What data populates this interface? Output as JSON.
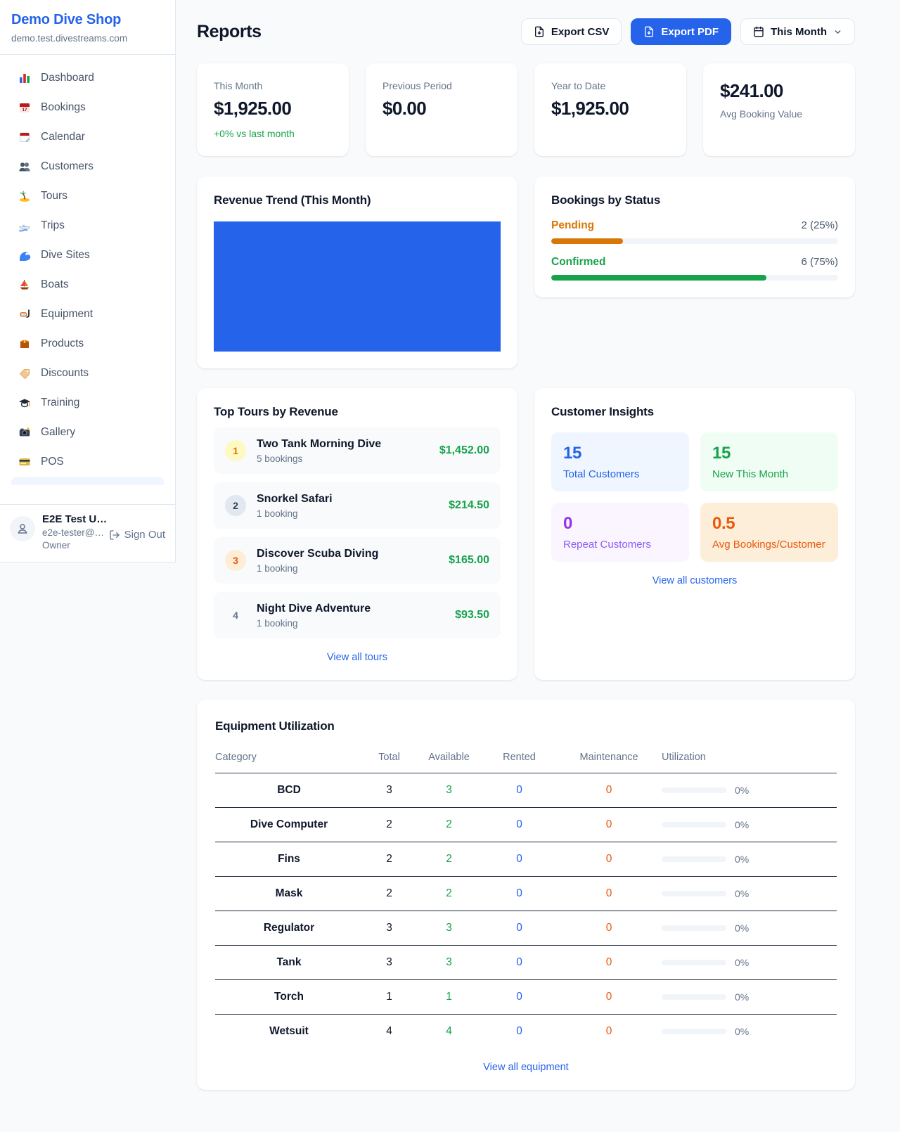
{
  "brand": {
    "name": "Demo Dive Shop",
    "domain": "demo.test.divestreams.com"
  },
  "sidebar": {
    "items": [
      {
        "label": "Dashboard",
        "icon": "bar-chart-icon"
      },
      {
        "label": "Bookings",
        "icon": "calendar-date-icon"
      },
      {
        "label": "Calendar",
        "icon": "tear-calendar-icon"
      },
      {
        "label": "Customers",
        "icon": "people-icon"
      },
      {
        "label": "Tours",
        "icon": "island-icon"
      },
      {
        "label": "Trips",
        "icon": "speedboat-icon"
      },
      {
        "label": "Dive Sites",
        "icon": "wave-icon"
      },
      {
        "label": "Boats",
        "icon": "sailboat-icon"
      },
      {
        "label": "Equipment",
        "icon": "dive-mask-icon"
      },
      {
        "label": "Products",
        "icon": "package-icon"
      },
      {
        "label": "Discounts",
        "icon": "tag-icon"
      },
      {
        "label": "Training",
        "icon": "grad-cap-icon"
      },
      {
        "label": "Gallery",
        "icon": "camera-icon"
      },
      {
        "label": "POS",
        "icon": "credit-card-icon"
      }
    ]
  },
  "user": {
    "name": "E2E Test U…",
    "email": "e2e-tester@…",
    "role": "Owner",
    "sign_out_label": "Sign Out"
  },
  "header": {
    "title": "Reports",
    "export_csv_label": "Export CSV",
    "export_pdf_label": "Export PDF",
    "period_label": "This Month"
  },
  "kpis": [
    {
      "label": "This Month",
      "value": "$1,925.00",
      "delta": "+0% vs last month"
    },
    {
      "label": "Previous Period",
      "value": "$0.00"
    },
    {
      "label": "Year to Date",
      "value": "$1,925.00"
    },
    {
      "label": "Avg Booking Value",
      "value": "$241.00"
    }
  ],
  "revenue_trend": {
    "title": "Revenue Trend (This Month)",
    "bar_color": "#2563eb"
  },
  "bookings_by_status": {
    "title": "Bookings by Status",
    "rows": [
      {
        "label": "Pending",
        "value": "2 (25%)",
        "percent": 25,
        "color": "#d97706"
      },
      {
        "label": "Confirmed",
        "value": "6 (75%)",
        "percent": 75,
        "color": "#16a34a"
      }
    ]
  },
  "top_tours": {
    "title": "Top Tours by Revenue",
    "rows": [
      {
        "rank": "1",
        "name": "Two Tank Morning Dive",
        "bookings": "5 bookings",
        "revenue": "$1,452.00"
      },
      {
        "rank": "2",
        "name": "Snorkel Safari",
        "bookings": "1 booking",
        "revenue": "$214.50"
      },
      {
        "rank": "3",
        "name": "Discover Scuba Diving",
        "bookings": "1 booking",
        "revenue": "$165.00"
      },
      {
        "rank": "4",
        "name": "Night Dive Adventure",
        "bookings": "1 booking",
        "revenue": "$93.50"
      }
    ],
    "view_all_label": "View all tours"
  },
  "customer_insights": {
    "title": "Customer Insights",
    "tiles": [
      {
        "value": "15",
        "label": "Total Customers",
        "accent": "#2563eb"
      },
      {
        "value": "15",
        "label": "New This Month",
        "accent": "#16a34a"
      },
      {
        "value": "0",
        "label": "Repeat Customers",
        "accent": "#9333ea"
      },
      {
        "value": "0.5",
        "label": "Avg Bookings/Customer",
        "accent": "#ea580c"
      }
    ],
    "view_all_label": "View all customers"
  },
  "equipment": {
    "title": "Equipment Utilization",
    "columns": [
      "Category",
      "Total",
      "Available",
      "Rented",
      "Maintenance",
      "Utilization"
    ],
    "rows": [
      {
        "category": "BCD",
        "total": "3",
        "available": "3",
        "rented": "0",
        "maintenance": "0",
        "utilization": "0%",
        "utilization_percent": 0
      },
      {
        "category": "Dive Computer",
        "total": "2",
        "available": "2",
        "rented": "0",
        "maintenance": "0",
        "utilization": "0%",
        "utilization_percent": 0
      },
      {
        "category": "Fins",
        "total": "2",
        "available": "2",
        "rented": "0",
        "maintenance": "0",
        "utilization": "0%",
        "utilization_percent": 0
      },
      {
        "category": "Mask",
        "total": "2",
        "available": "2",
        "rented": "0",
        "maintenance": "0",
        "utilization": "0%",
        "utilization_percent": 0
      },
      {
        "category": "Regulator",
        "total": "3",
        "available": "3",
        "rented": "0",
        "maintenance": "0",
        "utilization": "0%",
        "utilization_percent": 0
      },
      {
        "category": "Tank",
        "total": "3",
        "available": "3",
        "rented": "0",
        "maintenance": "0",
        "utilization": "0%",
        "utilization_percent": 0
      },
      {
        "category": "Torch",
        "total": "1",
        "available": "1",
        "rented": "0",
        "maintenance": "0",
        "utilization": "0%",
        "utilization_percent": 0
      },
      {
        "category": "Wetsuit",
        "total": "4",
        "available": "4",
        "rented": "0",
        "maintenance": "0",
        "utilization": "0%",
        "utilization_percent": 0
      }
    ],
    "view_all_label": "View all equipment"
  }
}
